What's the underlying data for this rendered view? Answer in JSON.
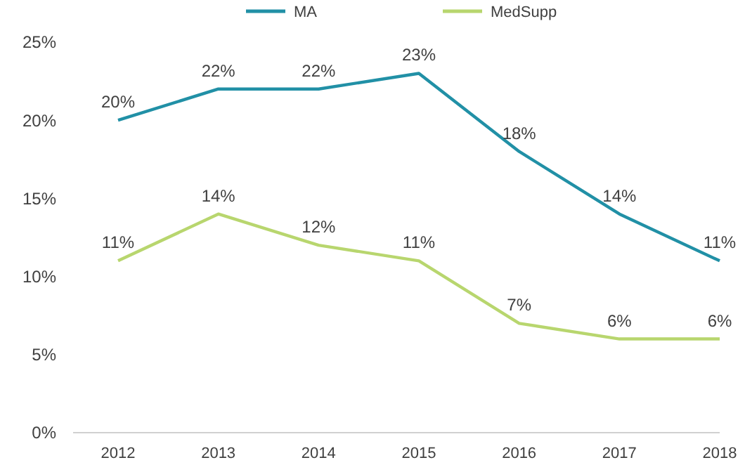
{
  "chart_data": {
    "type": "line",
    "categories": [
      "2012",
      "2013",
      "2014",
      "2015",
      "2016",
      "2017",
      "2018"
    ],
    "series": [
      {
        "name": "MA",
        "color": "#2190a6",
        "values": [
          20,
          22,
          22,
          23,
          18,
          14,
          11
        ],
        "value_labels": [
          "20%",
          "22%",
          "22%",
          "23%",
          "18%",
          "14%",
          "11%"
        ]
      },
      {
        "name": "MedSupp",
        "color": "#b8d66e",
        "values": [
          11,
          14,
          12,
          11,
          7,
          6,
          6
        ],
        "value_labels": [
          "11%",
          "14%",
          "12%",
          "11%",
          "7%",
          "6%",
          "6%"
        ]
      }
    ],
    "ylim": [
      0,
      25
    ],
    "yticks": [
      {
        "value": 0,
        "label": "0%"
      },
      {
        "value": 5,
        "label": "5%"
      },
      {
        "value": 10,
        "label": "10%"
      },
      {
        "value": 15,
        "label": "15%"
      },
      {
        "value": 20,
        "label": "20%"
      },
      {
        "value": 25,
        "label": "25%"
      }
    ],
    "legend": "top",
    "grid": false,
    "marker": "none",
    "line_style": "solid"
  }
}
